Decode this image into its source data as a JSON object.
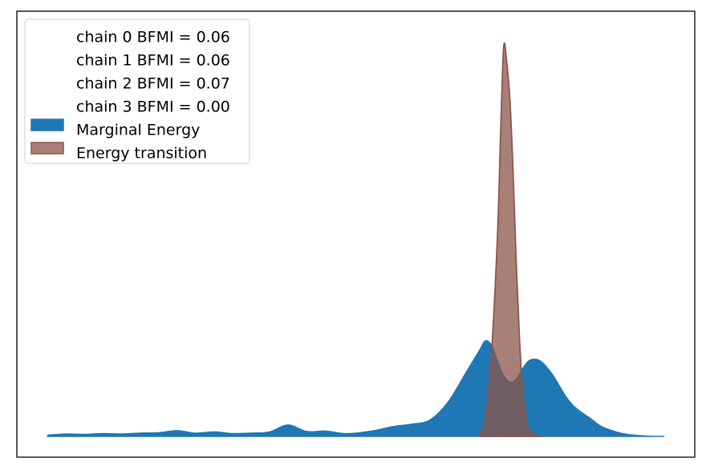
{
  "chart_data": {
    "type": "area",
    "title": "",
    "xlabel": "",
    "ylabel": "",
    "x_ticks": false,
    "y_ticks": false,
    "grid": false,
    "legend_position": "top-left",
    "bfmi": [
      {
        "text": "chain  0 BFMI = 0.06"
      },
      {
        "text": "chain  1 BFMI = 0.06"
      },
      {
        "text": "chain  2 BFMI = 0.07"
      },
      {
        "text": "chain  3 BFMI = 0.00"
      }
    ],
    "xlim": [
      -0.05,
      1.05
    ],
    "ylim": [
      0,
      1.0
    ],
    "series": [
      {
        "name": "Marginal Energy",
        "color": "#1f77b4",
        "x": [
          0.0,
          0.03,
          0.06,
          0.09,
          0.12,
          0.15,
          0.18,
          0.21,
          0.24,
          0.27,
          0.3,
          0.33,
          0.36,
          0.39,
          0.42,
          0.45,
          0.48,
          0.5,
          0.53,
          0.56,
          0.59,
          0.62,
          0.65,
          0.68,
          0.7,
          0.71,
          0.72,
          0.73,
          0.74,
          0.75,
          0.76,
          0.77,
          0.78,
          0.79,
          0.8,
          0.81,
          0.82,
          0.83,
          0.84,
          0.85,
          0.86,
          0.87,
          0.88,
          0.89,
          0.9,
          0.92,
          0.94,
          0.96,
          0.98,
          1.0
        ],
        "y": [
          0.003,
          0.006,
          0.005,
          0.007,
          0.006,
          0.008,
          0.009,
          0.014,
          0.008,
          0.011,
          0.007,
          0.008,
          0.011,
          0.028,
          0.012,
          0.013,
          0.007,
          0.008,
          0.014,
          0.024,
          0.03,
          0.04,
          0.085,
          0.16,
          0.21,
          0.235,
          0.225,
          0.185,
          0.15,
          0.134,
          0.14,
          0.165,
          0.185,
          0.19,
          0.185,
          0.17,
          0.15,
          0.125,
          0.1,
          0.08,
          0.066,
          0.055,
          0.045,
          0.033,
          0.023,
          0.012,
          0.005,
          0.002,
          0.0,
          0.0
        ]
      },
      {
        "name": "Energy transition",
        "color": "#8c564b",
        "x": [
          0.7,
          0.71,
          0.72,
          0.73,
          0.735,
          0.74,
          0.745,
          0.75,
          0.755,
          0.76,
          0.765,
          0.77,
          0.775,
          0.78,
          0.79,
          0.8
        ],
        "y": [
          0.0,
          0.04,
          0.2,
          0.5,
          0.75,
          0.96,
          0.92,
          0.83,
          0.66,
          0.44,
          0.26,
          0.13,
          0.06,
          0.02,
          0.005,
          0.0
        ]
      }
    ]
  }
}
